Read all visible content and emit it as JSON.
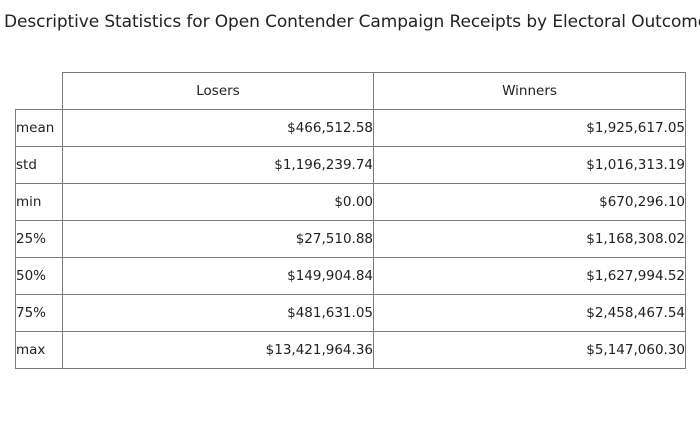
{
  "chart_data": {
    "type": "table",
    "title": "Descriptive Statistics for Open Contender Campaign Receipts by Electoral Outcome",
    "columns": [
      "Losers",
      "Winners"
    ],
    "rows": [
      {
        "label": "mean",
        "values": [
          "$466,512.58",
          "$1,925,617.05"
        ]
      },
      {
        "label": "std",
        "values": [
          "$1,196,239.74",
          "$1,016,313.19"
        ]
      },
      {
        "label": "min",
        "values": [
          "$0.00",
          "$670,296.10"
        ]
      },
      {
        "label": "25%",
        "values": [
          "$27,510.88",
          "$1,168,308.02"
        ]
      },
      {
        "label": "50%",
        "values": [
          "$149,904.84",
          "$1,627,994.52"
        ]
      },
      {
        "label": "75%",
        "values": [
          "$481,631.05",
          "$2,458,467.54"
        ]
      },
      {
        "label": "max",
        "values": [
          "$13,421,964.36",
          "$5,147,060.30"
        ]
      }
    ]
  }
}
